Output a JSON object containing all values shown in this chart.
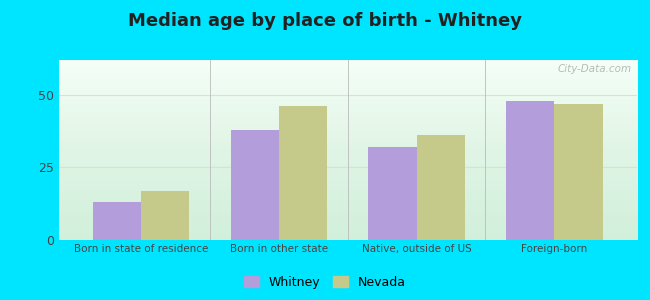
{
  "title": "Median age by place of birth - Whitney",
  "categories": [
    "Born in state of residence",
    "Born in other state",
    "Native, outside of US",
    "Foreign-born"
  ],
  "whitney_values": [
    13,
    38,
    32,
    48
  ],
  "nevada_values": [
    17,
    46,
    36,
    47
  ],
  "whitney_color": "#b39ddb",
  "nevada_color": "#c5c98a",
  "bar_width": 0.35,
  "ylim": [
    0,
    62
  ],
  "yticks": [
    0,
    25,
    50
  ],
  "bg_top": "#f0fdf8",
  "bg_bottom": "#d4edda",
  "outer_background": "#00e5ff",
  "grid_color": "#dddddd",
  "title_fontsize": 13,
  "legend_labels": [
    "Whitney",
    "Nevada"
  ],
  "watermark": "City-Data.com",
  "separator_color": "#bbbbbb"
}
